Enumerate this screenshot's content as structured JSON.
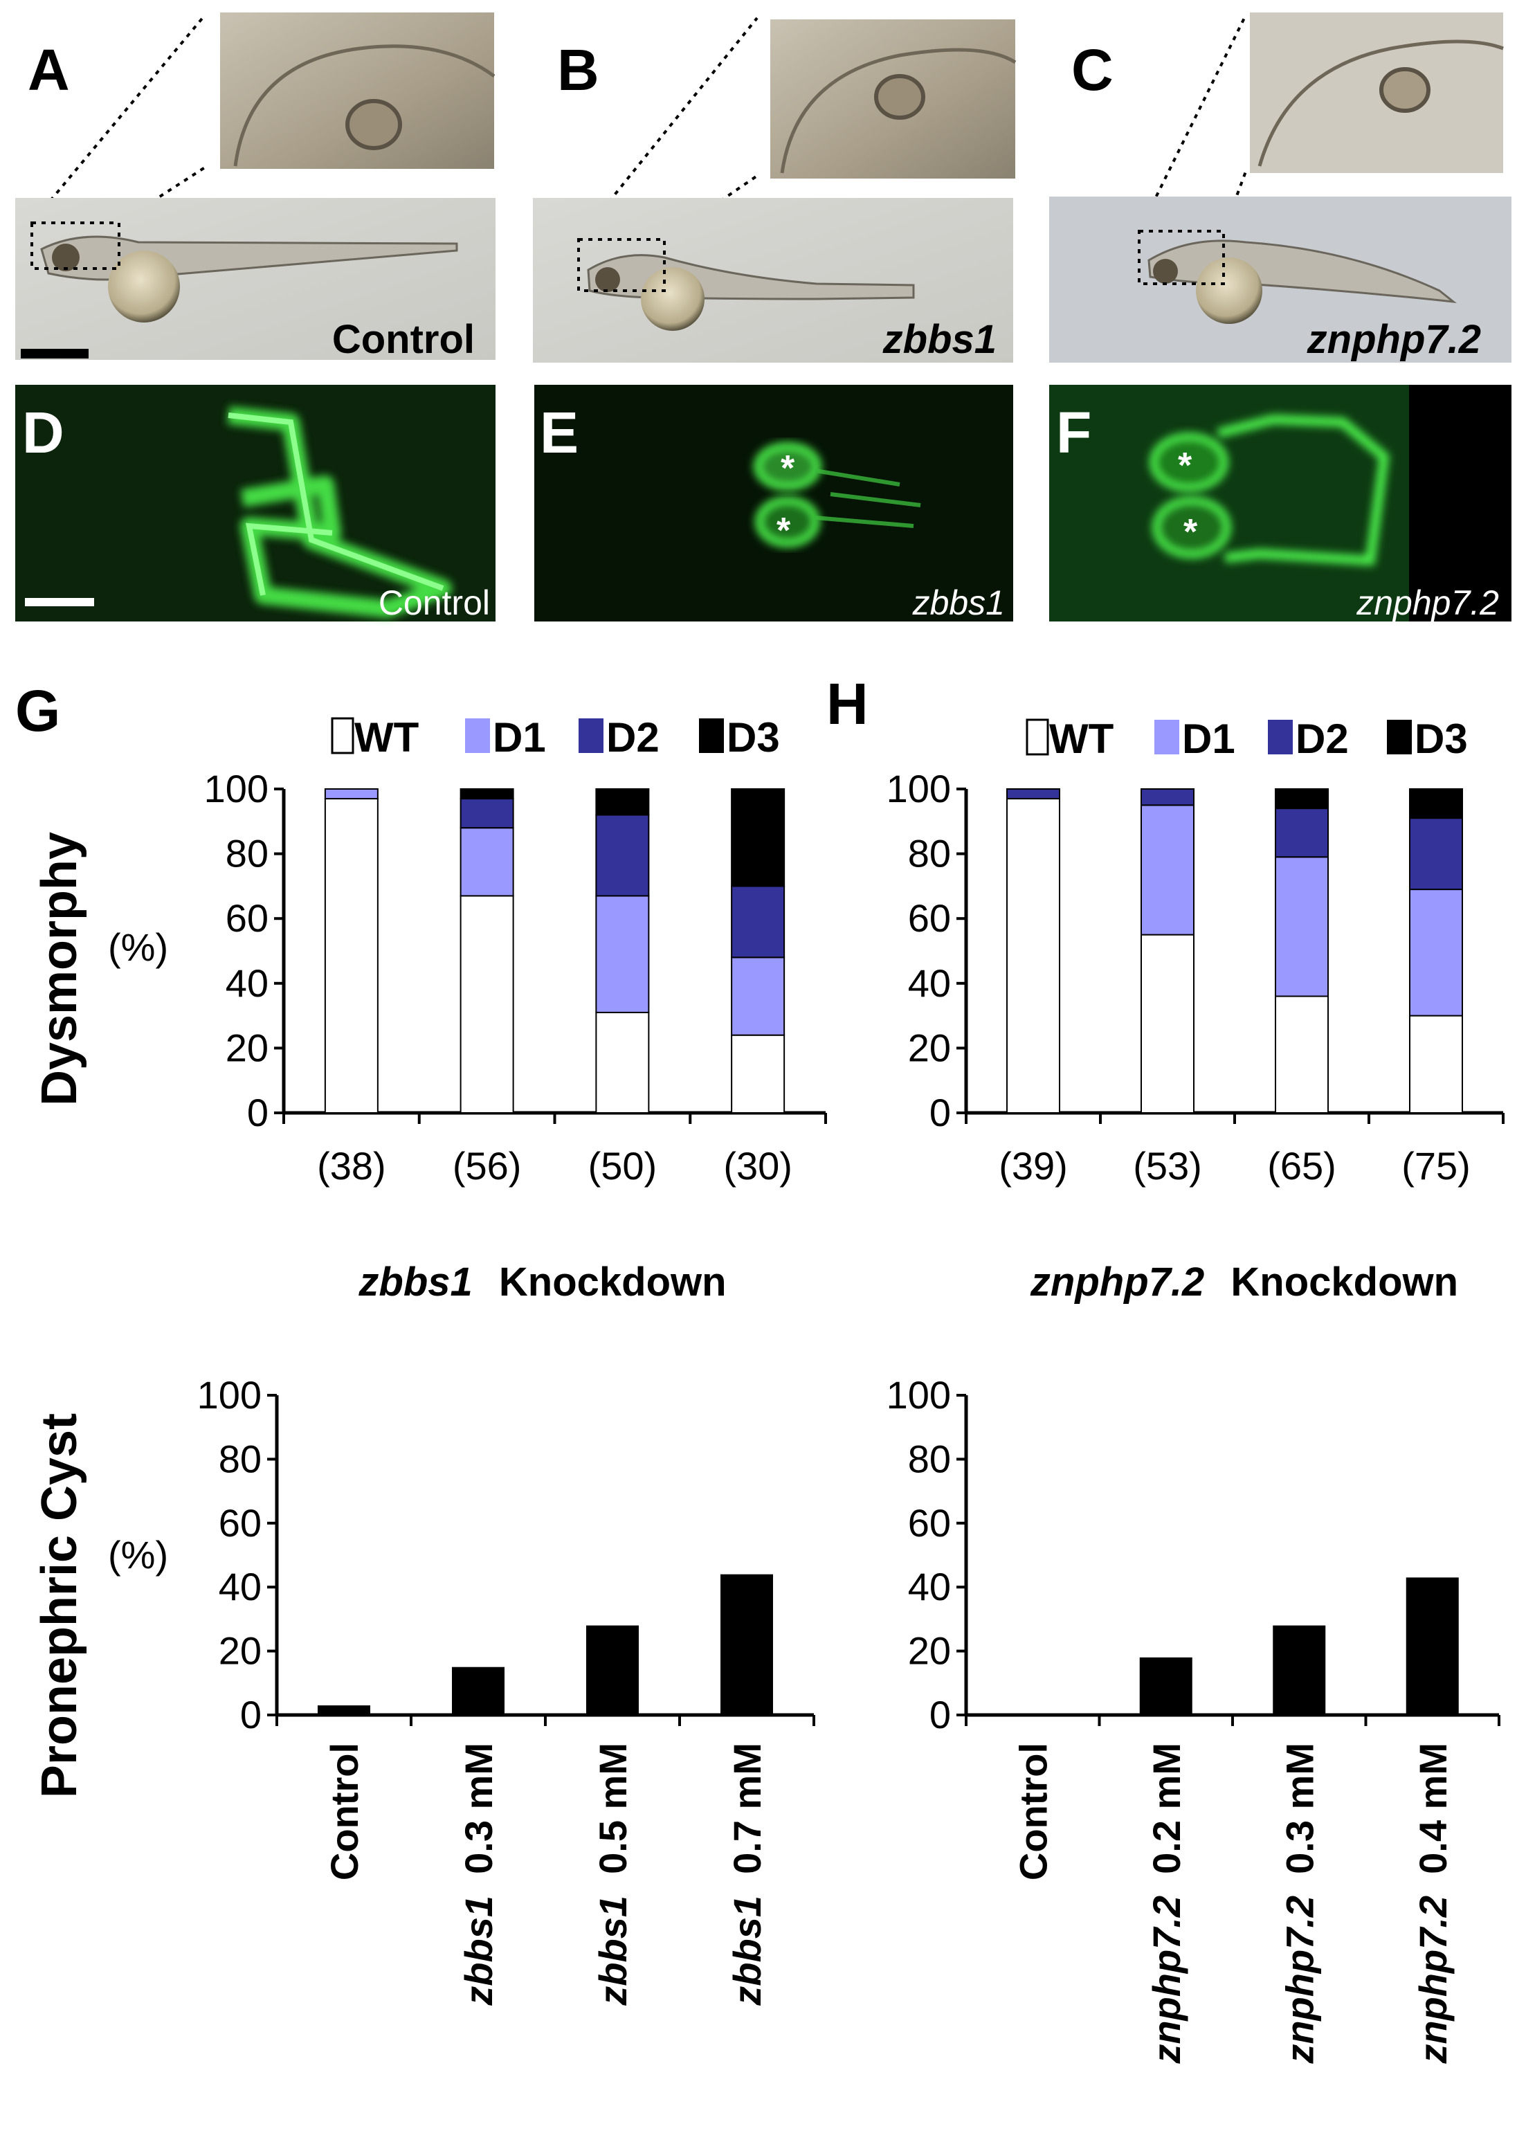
{
  "panels": {
    "A": {
      "letter": "A",
      "label": "Control"
    },
    "B": {
      "letter": "B",
      "label": "zbbs1"
    },
    "C": {
      "letter": "C",
      "label": "znphp7.2"
    },
    "D": {
      "letter": "D",
      "label": "Control"
    },
    "E": {
      "letter": "E",
      "label": "zbbs1"
    },
    "F": {
      "letter": "F",
      "label": "znphp7.2"
    },
    "G": {
      "letter": "G"
    },
    "H": {
      "letter": "H"
    }
  },
  "colors": {
    "wt": "#ffffff",
    "d1": "#9999ff",
    "d2": "#333399",
    "d3": "#000000",
    "cyst_bar": "#000000",
    "fluor_bg": "#0b240b",
    "fluor_green": "#4cf04c"
  },
  "legend": {
    "wt": "WT",
    "d1": "D1",
    "d2": "D2",
    "d3": "D3"
  },
  "dysmorphy_axis": {
    "title": "Dysmorphy",
    "unit": "(%)"
  },
  "cyst_axis": {
    "title": "Pronephric Cyst",
    "unit": "(%)"
  },
  "chart_data": [
    {
      "id": "G",
      "type": "bar",
      "stacked": true,
      "ylabel": "Dysmorphy (%)",
      "ylim": [
        0,
        100
      ],
      "yticks": [
        "0",
        "20",
        "40",
        "60",
        "80",
        "100"
      ],
      "categories": [
        "(38)",
        "(56)",
        "(50)",
        "(30)"
      ],
      "series": [
        {
          "name": "WT",
          "values": [
            97,
            67,
            31,
            24
          ]
        },
        {
          "name": "D1",
          "values": [
            3,
            21,
            36,
            24
          ]
        },
        {
          "name": "D2",
          "values": [
            0,
            9,
            25,
            22
          ]
        },
        {
          "name": "D3",
          "values": [
            0,
            3,
            8,
            30
          ]
        }
      ],
      "caption_gene": "zbbs1",
      "caption_rest": "Knockdown"
    },
    {
      "id": "H",
      "type": "bar",
      "stacked": true,
      "ylabel": "Dysmorphy (%)",
      "ylim": [
        0,
        100
      ],
      "yticks": [
        "0",
        "20",
        "40",
        "60",
        "80",
        "100"
      ],
      "categories": [
        "(39)",
        "(53)",
        "(65)",
        "(75)"
      ],
      "series": [
        {
          "name": "WT",
          "values": [
            97,
            55,
            36,
            30
          ]
        },
        {
          "name": "D1",
          "values": [
            0,
            40,
            43,
            39
          ]
        },
        {
          "name": "D2",
          "values": [
            3,
            5,
            15,
            22
          ]
        },
        {
          "name": "D3",
          "values": [
            0,
            0,
            6,
            9
          ]
        }
      ],
      "caption_gene": "znphp7.2",
      "caption_rest": "Knockdown"
    },
    {
      "id": "G-cyst",
      "type": "bar",
      "ylabel": "Pronephric Cyst (%)",
      "ylim": [
        0,
        100
      ],
      "yticks": [
        "0",
        "20",
        "40",
        "60",
        "80",
        "100"
      ],
      "categories": [
        {
          "gene": "",
          "dose": "Control"
        },
        {
          "gene": "zbbs1",
          "dose": "0.3 mM"
        },
        {
          "gene": "zbbs1",
          "dose": "0.5 mM"
        },
        {
          "gene": "zbbs1",
          "dose": "0.7 mM"
        }
      ],
      "values": [
        3,
        15,
        28,
        44
      ]
    },
    {
      "id": "H-cyst",
      "type": "bar",
      "ylabel": "Pronephric Cyst (%)",
      "ylim": [
        0,
        100
      ],
      "yticks": [
        "0",
        "20",
        "40",
        "60",
        "80",
        "100"
      ],
      "categories": [
        {
          "gene": "",
          "dose": "Control"
        },
        {
          "gene": "znphp7.2",
          "dose": "0.2 mM"
        },
        {
          "gene": "znphp7.2",
          "dose": "0.3 mM"
        },
        {
          "gene": "znphp7.2",
          "dose": "0.4 mM"
        }
      ],
      "values": [
        0,
        18,
        28,
        43
      ]
    }
  ]
}
